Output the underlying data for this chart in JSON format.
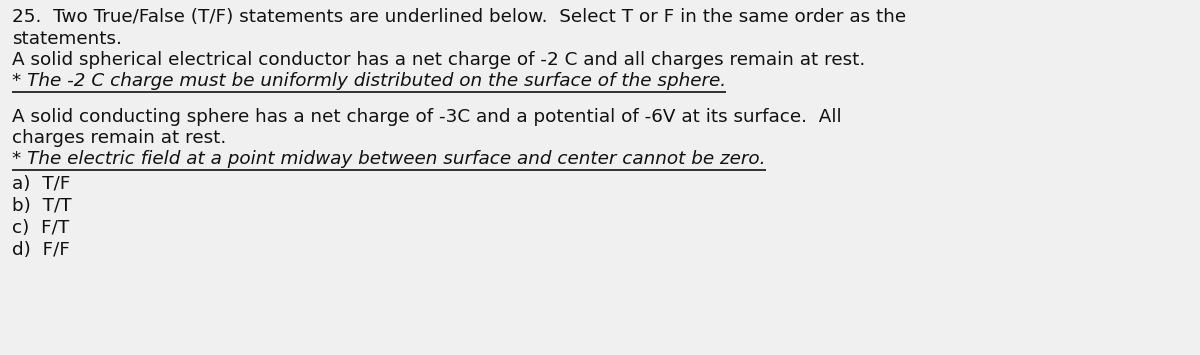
{
  "bg_color": "#f0f0f0",
  "text_color": "#111111",
  "line1a": "25.  Two True/False (T/F) statements are underlined below.  Select T or F in the same order as the",
  "line2": "statements.",
  "line3": "A solid spherical electrical conductor has a net charge of -2 C and all charges remain at rest.",
  "line4_underlined": "* The -2 C charge must be uniformly distributed on the surface of the sphere.",
  "line5": "A solid conducting sphere has a net charge of -3C and a potential of -6V at its surface.  All",
  "line6": "charges remain at rest.",
  "line7_underlined": "* The electric field at a point midway between surface and center cannot be zero.",
  "choices": [
    "a)  T/F",
    "b)  T/T",
    "c)  F/T",
    "d)  F/F"
  ],
  "font_size_main": 13.2,
  "font_family": "DejaVu Sans"
}
